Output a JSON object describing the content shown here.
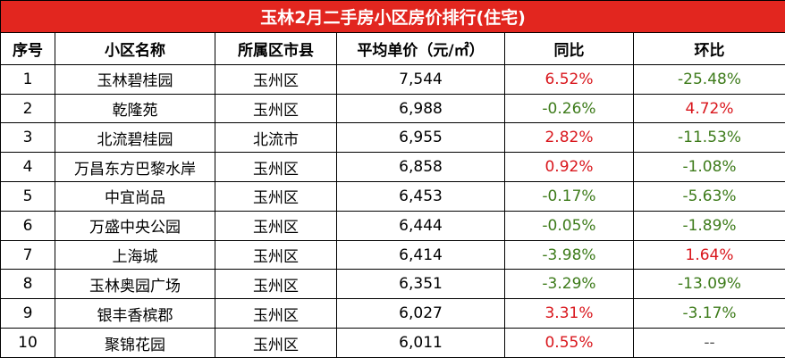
{
  "table": {
    "title": "玉林2月二手房小区房价排行(住宅)",
    "header": [
      "序号",
      "小区名称",
      "所属区市县",
      "平均单价（元/㎡）",
      "同比",
      "环比"
    ],
    "rows": [
      [
        "1",
        "玉林碧桂园",
        "玉州区",
        "7,544",
        "6.52%",
        "-25.48%"
      ],
      [
        "2",
        "乾隆苑",
        "玉州区",
        "6,988",
        "-0.26%",
        "4.72%"
      ],
      [
        "3",
        "北流碧桂园",
        "北流市",
        "6,955",
        "2.82%",
        "-11.53%"
      ],
      [
        "4",
        "万昌东方巴黎水岸",
        "玉州区",
        "6,858",
        "0.92%",
        "-1.08%"
      ],
      [
        "5",
        "中宜尚品",
        "玉州区",
        "6,453",
        "-0.17%",
        "-5.63%"
      ],
      [
        "6",
        "万盛中央公园",
        "玉州区",
        "6,444",
        "-0.05%",
        "-1.89%"
      ],
      [
        "7",
        "上海城",
        "玉州区",
        "6,414",
        "-3.98%",
        "1.64%"
      ],
      [
        "8",
        "玉林奥园广场",
        "玉州区",
        "6,351",
        "-3.29%",
        "-13.09%"
      ],
      [
        "9",
        "银丰香槟郡",
        "玉州区",
        "6,027",
        "3.31%",
        "-3.17%"
      ],
      [
        "10",
        "聚锦花园",
        "玉州区",
        "6,011",
        "0.55%",
        "--"
      ]
    ]
  }
}
